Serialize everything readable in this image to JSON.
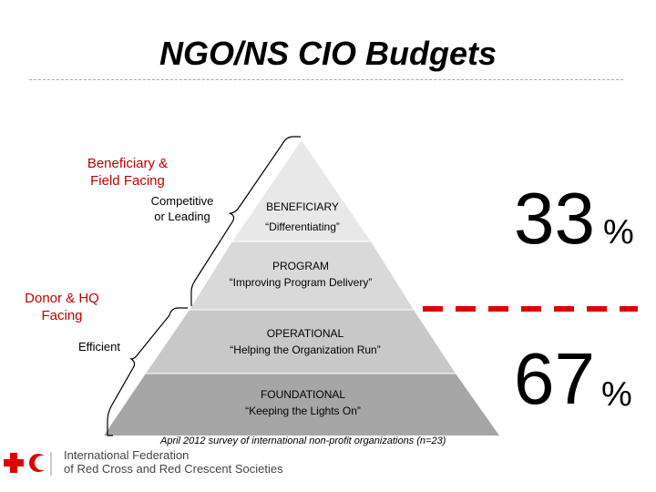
{
  "title": "NGO/NS CIO Budgets",
  "left_labels": {
    "group_top": [
      "Beneficiary &",
      "Field Facing"
    ],
    "group_top_sub": [
      "Competitive",
      "or Leading"
    ],
    "group_bottom": [
      "Donor & HQ",
      "Facing"
    ],
    "group_bottom_sub": "Efficient"
  },
  "pyramid": [
    {
      "name": "BENEFICIARY",
      "desc": "“Differentiating”",
      "color": "#e8e8e8"
    },
    {
      "name": "PROGRAM",
      "desc": "“Improving Program Delivery”",
      "color": "#d9d9d9"
    },
    {
      "name": "OPERATIONAL",
      "desc": "“Helping the Organization Run”",
      "color": "#c8c8c8"
    },
    {
      "name": "FOUNDATIONAL",
      "desc": "“Keeping the Lights On”",
      "color": "#a6a6a6"
    }
  ],
  "percentages": {
    "top_value": "33",
    "top_unit": "%",
    "bottom_value": "67",
    "bottom_unit": "%"
  },
  "colors": {
    "accent_red": "#e00000",
    "label_red": "#c00000"
  },
  "footnote": "April 2012 survey of international non-profit organizations (n=23)",
  "logo": {
    "icon": "red-cross-crescent-icon",
    "text_line1": "International Federation",
    "text_line2": "of Red Cross and Red Crescent Societies"
  }
}
